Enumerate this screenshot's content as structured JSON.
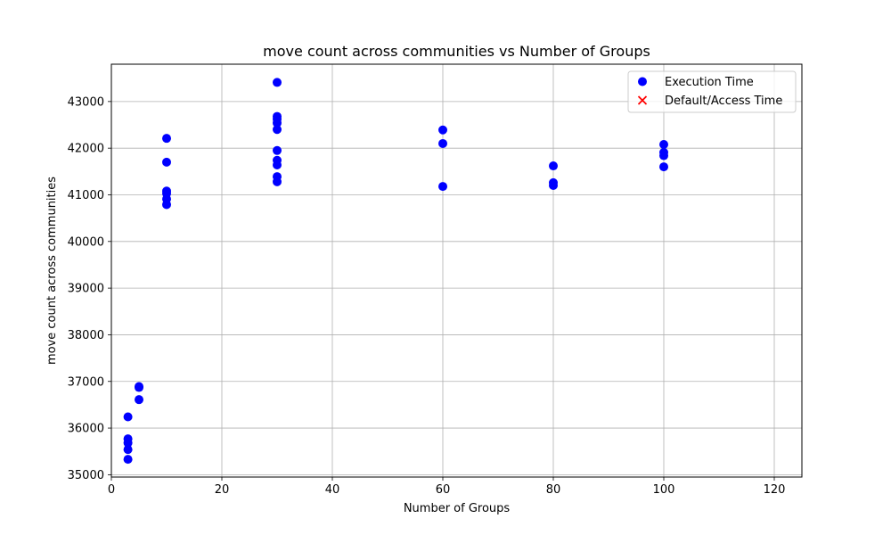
{
  "chart_data": {
    "type": "scatter",
    "title": "move count across communities vs Number of Groups",
    "xlabel": "Number of Groups",
    "ylabel": "move count across communities",
    "xlim": [
      0,
      125
    ],
    "ylim": [
      34950,
      43800
    ],
    "xticks": [
      0,
      20,
      40,
      60,
      80,
      100,
      120
    ],
    "yticks": [
      35000,
      36000,
      37000,
      38000,
      39000,
      40000,
      41000,
      42000,
      43000
    ],
    "grid": true,
    "legend_position": "top-right",
    "series": [
      {
        "name": "Execution Time",
        "marker": "circle",
        "color": "#0000ff",
        "points": [
          [
            3,
            36240
          ],
          [
            3,
            35770
          ],
          [
            3,
            35680
          ],
          [
            3,
            35540
          ],
          [
            3,
            35330
          ],
          [
            5,
            36890
          ],
          [
            5,
            36870
          ],
          [
            5,
            36610
          ],
          [
            10,
            42210
          ],
          [
            10,
            41700
          ],
          [
            10,
            41080
          ],
          [
            10,
            41030
          ],
          [
            10,
            40910
          ],
          [
            10,
            40790
          ],
          [
            30,
            43410
          ],
          [
            30,
            42680
          ],
          [
            30,
            42620
          ],
          [
            30,
            42540
          ],
          [
            30,
            42400
          ],
          [
            30,
            41950
          ],
          [
            30,
            41740
          ],
          [
            30,
            41640
          ],
          [
            30,
            41390
          ],
          [
            30,
            41280
          ],
          [
            60,
            42390
          ],
          [
            60,
            42100
          ],
          [
            60,
            41180
          ],
          [
            80,
            41620
          ],
          [
            80,
            41260
          ],
          [
            80,
            41200
          ],
          [
            100,
            42080
          ],
          [
            100,
            41910
          ],
          [
            100,
            41840
          ],
          [
            100,
            41600
          ]
        ]
      },
      {
        "name": "Default/Access Time",
        "marker": "x",
        "color": "#ff0000",
        "points": []
      }
    ]
  }
}
